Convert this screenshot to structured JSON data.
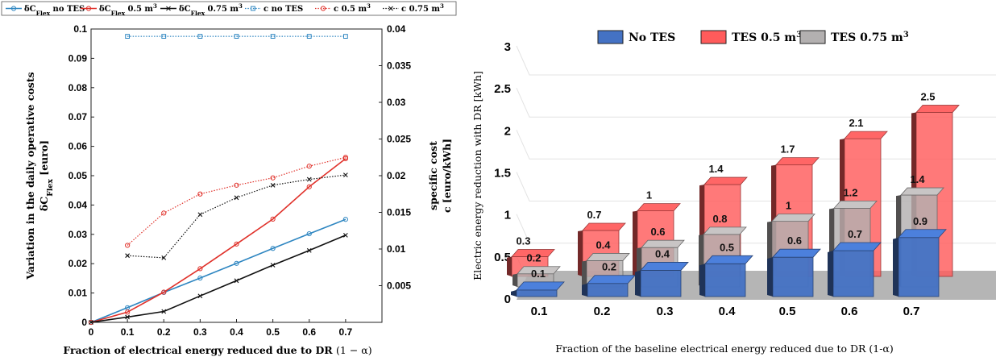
{
  "chart_data": [
    {
      "type": "line",
      "xlabel": "Fraction of electrical energy reduced due to DR",
      "xlabel_math": "(1 − α)",
      "ylabel_left": [
        "Variation in the daily operative costs",
        "δC",
        "Flex",
        " [euro]"
      ],
      "ylabel_right": [
        "specific cost",
        "c [euro/kWh]"
      ],
      "x": [
        0,
        0.1,
        0.2,
        0.3,
        0.4,
        0.5,
        0.6,
        0.7
      ],
      "x_ticks": [
        "0",
        "0.1",
        "0.2",
        "0.3",
        "0.4",
        "0.5",
        "0.6",
        "0.7"
      ],
      "ylim_left": [
        0,
        0.1
      ],
      "y_ticks_left": [
        "0",
        "0.01",
        "0.02",
        "0.03",
        "0.04",
        "0.05",
        "0.06",
        "0.07",
        "0.08",
        "0.09",
        "0.1"
      ],
      "ylim_right": [
        0,
        0.04
      ],
      "y_ticks_right": [
        "0.005",
        "0.01",
        "0.015",
        "0.02",
        "0.025",
        "0.03",
        "0.035",
        "0.04"
      ],
      "legend_position": "top",
      "series": [
        {
          "name": "δCFlex no TES",
          "legend": [
            "δC",
            "Flex",
            " no TES"
          ],
          "axis": "left",
          "color": "#2e86c1",
          "style": "solid",
          "marker": "circle",
          "x": [
            0,
            0.1,
            0.2,
            0.3,
            0.4,
            0.5,
            0.6,
            0.7
          ],
          "values": [
            0,
            0.005,
            0.0102,
            0.0151,
            0.0201,
            0.0252,
            0.0302,
            0.0351
          ]
        },
        {
          "name": "δCFlex 0.5 m3",
          "legend": [
            "δC",
            "Flex",
            " 0.5 m",
            "3"
          ],
          "axis": "left",
          "color": "#e0312a",
          "style": "solid",
          "marker": "circle",
          "x": [
            0,
            0.1,
            0.2,
            0.3,
            0.4,
            0.5,
            0.6,
            0.7
          ],
          "values": [
            0,
            0.0035,
            0.0103,
            0.0183,
            0.0267,
            0.0352,
            0.0462,
            0.0558
          ]
        },
        {
          "name": "δCFlex 0.75 m3",
          "legend": [
            "δC",
            "Flex",
            " 0.75 m",
            "3"
          ],
          "axis": "left",
          "color": "#111111",
          "style": "solid",
          "marker": "x",
          "x": [
            0,
            0.1,
            0.2,
            0.3,
            0.4,
            0.5,
            0.6,
            0.7
          ],
          "values": [
            0,
            0.0018,
            0.0037,
            0.009,
            0.0142,
            0.0195,
            0.0245,
            0.0297
          ]
        },
        {
          "name": "c no TES",
          "legend": [
            "c no TES"
          ],
          "axis": "right",
          "color": "#2e86c1",
          "style": "dotted",
          "marker": "square",
          "x": [
            0.1,
            0.2,
            0.3,
            0.4,
            0.5,
            0.6,
            0.7
          ],
          "values": [
            0.039,
            0.039,
            0.039,
            0.039,
            0.039,
            0.039,
            0.039
          ]
        },
        {
          "name": "c 0.5 m3",
          "legend": [
            "c 0.5 m",
            "3"
          ],
          "axis": "right",
          "color": "#e0312a",
          "style": "dotted",
          "marker": "circle",
          "x": [
            0.1,
            0.2,
            0.3,
            0.4,
            0.5,
            0.6,
            0.7
          ],
          "values": [
            0.0105,
            0.0149,
            0.0175,
            0.0187,
            0.0197,
            0.0213,
            0.0225
          ]
        },
        {
          "name": "c 0.75 m3",
          "legend": [
            "c 0.75 m",
            "3"
          ],
          "axis": "right",
          "color": "#111111",
          "style": "dotted",
          "marker": "x",
          "x": [
            0.1,
            0.2,
            0.3,
            0.4,
            0.5,
            0.6,
            0.7
          ],
          "values": [
            0.0091,
            0.0088,
            0.0147,
            0.017,
            0.0187,
            0.0195,
            0.0201
          ]
        }
      ],
      "grid": false
    },
    {
      "type": "bar",
      "style": "3d-grouped",
      "xlabel": "Fraction of the baseline electrical energy reduced due to DR (1-α)",
      "ylabel": "Electric energy reduction with DR [kWh]",
      "categories": [
        "0.1",
        "0.2",
        "0.3",
        "0.4",
        "0.5",
        "0.6",
        "0.7"
      ],
      "ylim": [
        0,
        3
      ],
      "y_ticks": [
        "0",
        "0.5",
        "1",
        "1.5",
        "2",
        "2.5",
        "3"
      ],
      "legend_position": "top",
      "grid": true,
      "series": [
        {
          "name": "No TES",
          "legend": [
            "No TES"
          ],
          "color": "#4472c4",
          "values": [
            0.1,
            0.2,
            0.4,
            0.5,
            0.6,
            0.7,
            0.9
          ],
          "labels": [
            "0.1",
            "0.2",
            "0.4",
            "0.5",
            "0.6",
            "0.7",
            "0.9"
          ]
        },
        {
          "name": "TES 0.5 m3",
          "legend": [
            "TES 0.5 m",
            "3"
          ],
          "color": "#ff5b5b",
          "values": [
            0.3,
            0.7,
            1.0,
            1.4,
            1.7,
            2.1,
            2.5
          ],
          "labels": [
            "0.3",
            "0.7",
            "1",
            "1.4",
            "1.7",
            "2.1",
            "2.5"
          ]
        },
        {
          "name": "TES 0.75 m3",
          "legend": [
            "TES 0.75 m",
            "3"
          ],
          "color": "#b3b0b0",
          "values": [
            0.2,
            0.4,
            0.6,
            0.8,
            1.0,
            1.2,
            1.4
          ],
          "labels": [
            "0.2",
            "0.4",
            "0.6",
            "0.8",
            "1",
            "1.2",
            "1.4"
          ]
        }
      ]
    }
  ]
}
